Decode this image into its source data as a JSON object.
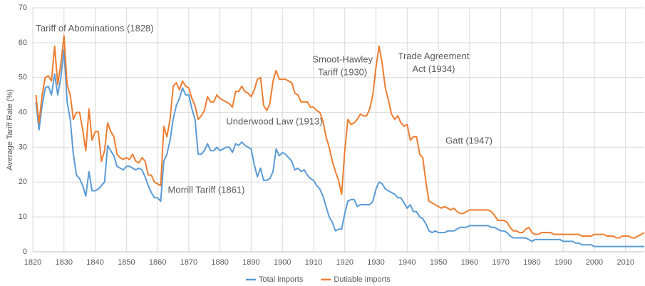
{
  "chart_data": {
    "type": "line",
    "y_label": "Average Tariff Rate (%)",
    "x": [
      1821,
      1822,
      1823,
      1824,
      1825,
      1826,
      1827,
      1828,
      1829,
      1830,
      1831,
      1832,
      1833,
      1834,
      1835,
      1836,
      1837,
      1838,
      1839,
      1840,
      1841,
      1842,
      1843,
      1844,
      1845,
      1846,
      1847,
      1848,
      1849,
      1850,
      1851,
      1852,
      1853,
      1854,
      1855,
      1856,
      1857,
      1858,
      1859,
      1860,
      1861,
      1862,
      1863,
      1864,
      1865,
      1866,
      1867,
      1868,
      1869,
      1870,
      1871,
      1872,
      1873,
      1874,
      1875,
      1876,
      1877,
      1878,
      1879,
      1880,
      1881,
      1882,
      1883,
      1884,
      1885,
      1886,
      1887,
      1888,
      1889,
      1890,
      1891,
      1892,
      1893,
      1894,
      1895,
      1896,
      1897,
      1898,
      1899,
      1900,
      1901,
      1902,
      1903,
      1904,
      1905,
      1906,
      1907,
      1908,
      1909,
      1910,
      1911,
      1912,
      1913,
      1914,
      1915,
      1916,
      1917,
      1918,
      1919,
      1920,
      1921,
      1922,
      1923,
      1924,
      1925,
      1926,
      1927,
      1928,
      1929,
      1930,
      1931,
      1932,
      1933,
      1934,
      1935,
      1936,
      1937,
      1938,
      1939,
      1940,
      1941,
      1942,
      1943,
      1944,
      1945,
      1946,
      1947,
      1948,
      1949,
      1950,
      1951,
      1952,
      1953,
      1954,
      1955,
      1956,
      1957,
      1958,
      1959,
      1960,
      1961,
      1962,
      1963,
      1964,
      1965,
      1966,
      1967,
      1968,
      1969,
      1970,
      1971,
      1972,
      1973,
      1974,
      1975,
      1976,
      1977,
      1978,
      1979,
      1980,
      1981,
      1982,
      1983,
      1984,
      1985,
      1986,
      1987,
      1988,
      1989,
      1990,
      1991,
      1992,
      1993,
      1994,
      1995,
      1996,
      1997,
      1998,
      1999,
      2000,
      2001,
      2002,
      2003,
      2004,
      2005,
      2006,
      2007,
      2008,
      2009,
      2010,
      2011,
      2012,
      2013,
      2014,
      2015,
      2016
    ],
    "series": [
      {
        "name": "Total imports",
        "color": "#5b9bd5",
        "values": [
          43,
          35,
          42,
          47,
          47.5,
          45,
          51,
          45,
          50,
          58,
          43,
          38,
          28,
          22,
          21,
          19,
          16,
          23,
          17.5,
          17.5,
          18,
          19,
          20,
          30.5,
          29,
          27.5,
          24.5,
          24,
          23.5,
          24.5,
          24.5,
          24,
          23.5,
          24,
          23.5,
          21.5,
          19,
          17,
          15.5,
          15.5,
          14.5,
          26,
          28,
          32,
          38,
          42,
          44,
          47,
          45,
          45,
          41,
          38,
          28,
          28,
          29,
          31,
          29,
          29,
          30,
          29,
          29.5,
          30,
          30,
          28.5,
          31,
          30.5,
          31.5,
          30.5,
          30,
          29.5,
          25,
          21.5,
          24,
          20.5,
          20.5,
          21,
          23,
          29.5,
          27.5,
          28.5,
          28,
          27,
          26,
          23.5,
          24,
          23,
          23.5,
          22,
          21,
          20.5,
          19,
          18,
          16,
          13,
          10,
          8.5,
          6,
          6.5,
          6.5,
          11,
          14.5,
          15,
          15,
          13,
          13.5,
          13.5,
          13.5,
          13.5,
          14.5,
          18,
          20,
          19.5,
          18,
          17.5,
          17,
          16.5,
          15.5,
          15.5,
          14,
          12.5,
          13.5,
          11.5,
          11.5,
          10,
          9.5,
          8,
          6,
          5.5,
          6,
          5.5,
          5.5,
          5.5,
          6,
          6,
          6,
          6.5,
          7,
          7,
          7,
          7.5,
          7.5,
          7.5,
          7.5,
          7.5,
          7.5,
          7.5,
          7,
          7,
          6.5,
          6,
          6,
          5.5,
          4.5,
          4,
          4,
          4,
          4,
          4,
          3.5,
          3,
          3.5,
          3.5,
          3.5,
          3.5,
          3.5,
          3.5,
          3.5,
          3.5,
          3.5,
          3,
          3,
          3,
          3,
          2.5,
          2.5,
          2,
          2,
          2,
          2,
          1.5,
          1.5,
          1.5,
          1.5,
          1.5,
          1.5,
          1.5,
          1.5,
          1.5,
          1.5,
          1.5,
          1.5,
          1.5,
          1.5,
          1.5,
          1.5,
          1.5
        ]
      },
      {
        "name": "Dutiable imports",
        "color": "#ed7d31",
        "values": [
          45,
          37,
          45,
          50,
          50.5,
          49,
          59,
          48,
          54,
          62,
          48,
          45,
          38,
          40,
          40,
          35,
          29,
          41,
          32,
          34.5,
          34.5,
          26,
          29,
          37,
          34.5,
          33,
          28,
          27,
          26.5,
          27,
          26.5,
          28,
          26,
          25.5,
          27,
          26,
          22,
          22,
          20,
          19.5,
          19,
          36,
          33,
          38,
          47.5,
          48.5,
          46.5,
          49,
          47.5,
          47,
          44,
          42,
          38,
          39,
          40.5,
          44.5,
          43,
          43,
          45,
          44,
          43.5,
          43,
          42.5,
          41.5,
          46,
          46,
          47.5,
          46,
          45.5,
          44.5,
          46.5,
          49.5,
          50,
          42,
          40.5,
          42.5,
          49,
          52,
          49.5,
          49.5,
          49.5,
          49,
          48.5,
          45.5,
          45,
          43,
          43,
          43,
          41.5,
          41.5,
          40.5,
          40,
          37.5,
          33,
          30,
          26,
          23,
          20.5,
          16.5,
          29,
          38,
          36.5,
          37,
          38,
          39.5,
          39,
          39,
          41,
          45,
          53,
          59,
          54,
          47,
          43.5,
          39.5,
          38,
          39,
          37,
          36,
          36.5,
          32,
          33,
          33,
          28,
          27,
          20,
          14.5,
          14,
          13.5,
          13,
          12.5,
          13,
          12.5,
          12,
          12.5,
          11.5,
          11,
          11,
          11.5,
          12,
          12,
          12,
          12,
          12,
          12,
          12,
          11.5,
          10.5,
          9,
          9,
          9,
          8.5,
          7,
          6,
          6,
          5.5,
          5.5,
          6.5,
          7,
          5.5,
          5,
          5,
          5.5,
          5.5,
          5.5,
          5.5,
          5,
          5,
          5,
          5,
          5,
          5,
          5,
          5,
          5,
          4.5,
          4.5,
          4.5,
          4.5,
          5,
          5,
          5,
          5,
          4.5,
          4.5,
          4.5,
          4,
          4,
          4.5,
          4.5,
          4.5,
          4,
          4,
          4.5,
          5,
          5.5
        ]
      }
    ],
    "xlim": [
      1820,
      2016
    ],
    "ylim": [
      0,
      70
    ],
    "xticks": [
      1820,
      1830,
      1840,
      1850,
      1860,
      1870,
      1880,
      1890,
      1900,
      1910,
      1920,
      1930,
      1940,
      1950,
      1960,
      1970,
      1980,
      1990,
      2000,
      2010
    ],
    "yticks": [
      0,
      10,
      20,
      30,
      40,
      50,
      60,
      70
    ],
    "grid": true,
    "legend": "bottom",
    "annotations": [
      {
        "lines": [
          "Tariff of Abominations (1828)"
        ],
        "x": 1821,
        "y": 64,
        "anchor": "start"
      },
      {
        "lines": [
          "Morrill Tariff  (1861)"
        ],
        "x": 1863.3,
        "y": 17.6,
        "anchor": "start"
      },
      {
        "lines": [
          "Underwood  Law (1913)"
        ],
        "x": 1882,
        "y": 37.2,
        "anchor": "start"
      },
      {
        "lines": [
          "Smoot-Hawley",
          "Tariff (1930)"
        ],
        "x": 1919.3,
        "y": 55,
        "anchor": "middle"
      },
      {
        "lines": [
          "Trade Agreement",
          "Act (1934)"
        ],
        "x": 1948.5,
        "y": 56,
        "anchor": "middle"
      },
      {
        "lines": [
          "Gatt (1947)"
        ],
        "x": 1952.3,
        "y": 31.7,
        "anchor": "start"
      }
    ]
  }
}
